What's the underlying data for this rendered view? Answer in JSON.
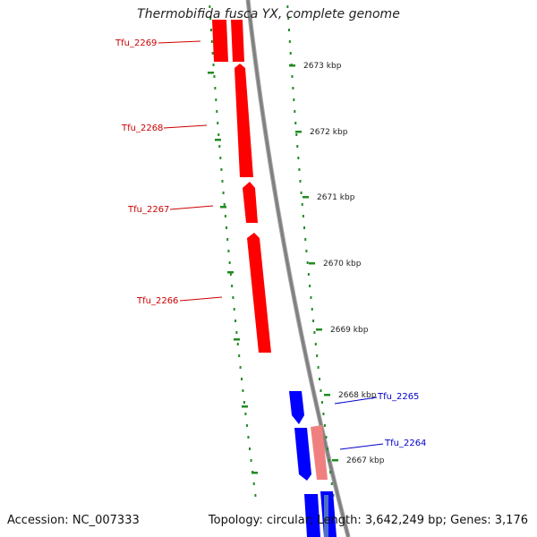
{
  "title": "Thermobifida fusca YX, complete genome",
  "accession": "Accession: NC_007333",
  "summary": "Topology: circular; Length: 3,642,249 bp; Genes: 3,176",
  "colors": {
    "forward_gene": "#ff0000",
    "reverse_gene": "#0000ff",
    "forward_gene_light": "#f08080",
    "backbone": "#808080",
    "tick": "#228b22",
    "forward_label": "#cc0000",
    "reverse_label": "#0000cc"
  },
  "scale_labels": [
    "2673 kbp",
    "2672 kbp",
    "2671 kbp",
    "2670 kbp",
    "2669 kbp",
    "2668 kbp",
    "2667 kbp"
  ],
  "genes": [
    {
      "name": "Tfu_2269",
      "strand": "forward"
    },
    {
      "name": "Tfu_2268",
      "strand": "forward"
    },
    {
      "name": "Tfu_2267",
      "strand": "forward"
    },
    {
      "name": "Tfu_2266",
      "strand": "forward"
    },
    {
      "name": "Tfu_2265",
      "strand": "reverse"
    },
    {
      "name": "Tfu_2264",
      "strand": "reverse"
    }
  ]
}
